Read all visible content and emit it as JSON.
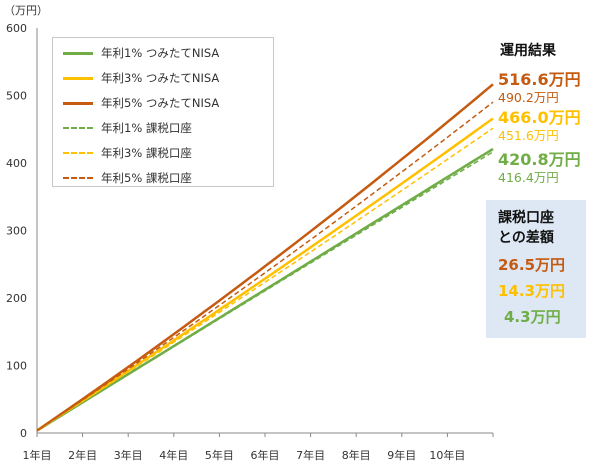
{
  "chart_data": {
    "type": "line",
    "y_unit_label": "（万円）",
    "ylim": [
      0,
      600
    ],
    "y_ticks": [
      "0",
      "100",
      "200",
      "300",
      "400",
      "500",
      "600"
    ],
    "x_ticks": [
      "1年目",
      "2年目",
      "3年目",
      "4年目",
      "5年目",
      "6年目",
      "7年目",
      "8年目",
      "9年目",
      "10年目"
    ],
    "x_range": [
      1,
      11
    ],
    "grid": false,
    "legend_position": "top-left",
    "series": [
      {
        "name": "年利1% つみたてNISA",
        "color": "#70ad47",
        "style": "solid",
        "start": 3.6,
        "end": 420.8
      },
      {
        "name": "年利3% つみたてNISA",
        "color": "#ffc000",
        "style": "solid",
        "start": 3.6,
        "end": 466.0
      },
      {
        "name": "年利5% つみたてNISA",
        "color": "#c55a11",
        "style": "solid",
        "start": 3.6,
        "end": 516.6
      },
      {
        "name": "年利1% 課税口座",
        "color": "#70ad47",
        "style": "dashed",
        "start": 3.6,
        "end": 416.4
      },
      {
        "name": "年利3% 課税口座",
        "color": "#ffc000",
        "style": "dashed",
        "start": 3.6,
        "end": 451.6
      },
      {
        "name": "年利5% 課税口座",
        "color": "#c55a11",
        "style": "dashed",
        "start": 3.6,
        "end": 490.2
      }
    ],
    "results_title": "運用結果",
    "results": [
      {
        "nisa": "516.6万円",
        "taxable": "490.2万円",
        "color": "#c55a11"
      },
      {
        "nisa": "466.0万円",
        "taxable": "451.6万円",
        "color": "#ffc000"
      },
      {
        "nisa": "420.8万円",
        "taxable": "416.4万円",
        "color": "#70ad47"
      }
    ],
    "diff_title_line1": "課税口座",
    "diff_title_line2": "との差額",
    "diffs": [
      {
        "value": "26.5万円",
        "color": "#c55a11"
      },
      {
        "value": "14.3万円",
        "color": "#ffc000"
      },
      {
        "value": "4.3万円",
        "color": "#70ad47"
      }
    ]
  }
}
